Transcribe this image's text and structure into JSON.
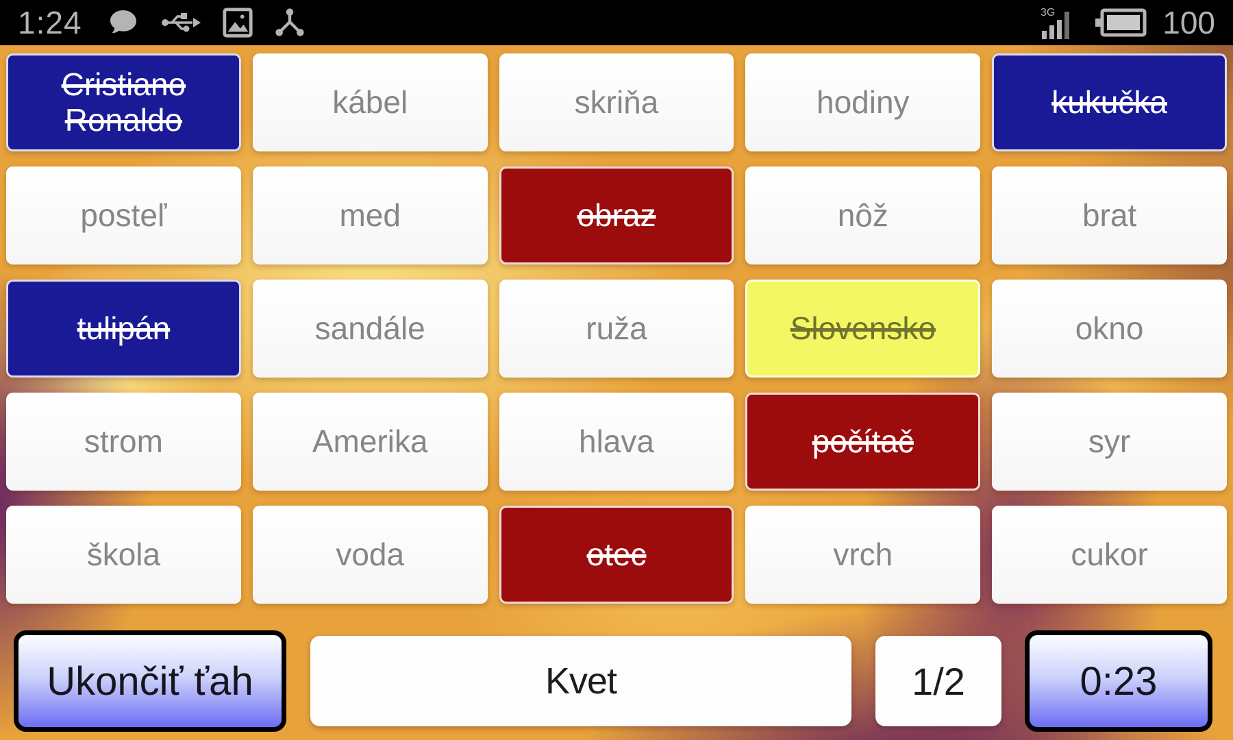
{
  "status_bar": {
    "time": "1:24",
    "network_label": "3G",
    "battery_text": "100",
    "left_icons": [
      "chat-icon",
      "usb-icon",
      "gallery-icon",
      "hub-icon"
    ],
    "right_icons": [
      "signal-icon",
      "battery-icon"
    ]
  },
  "board": {
    "rows": 5,
    "cols": 5,
    "cards": [
      {
        "word": "Cristiano Ronaldo",
        "type": "blue",
        "struck": true
      },
      {
        "word": "kábel",
        "type": "white",
        "struck": false
      },
      {
        "word": "skriňa",
        "type": "white",
        "struck": false
      },
      {
        "word": "hodiny",
        "type": "white",
        "struck": false
      },
      {
        "word": "kukučka",
        "type": "blue",
        "struck": true
      },
      {
        "word": "posteľ",
        "type": "white",
        "struck": false
      },
      {
        "word": "med",
        "type": "white",
        "struck": false
      },
      {
        "word": "obraz",
        "type": "red",
        "struck": true
      },
      {
        "word": "nôž",
        "type": "white",
        "struck": false
      },
      {
        "word": "brat",
        "type": "white",
        "struck": false
      },
      {
        "word": "tulipán",
        "type": "blue",
        "struck": true
      },
      {
        "word": "sandále",
        "type": "white",
        "struck": false
      },
      {
        "word": "ruža",
        "type": "white",
        "struck": false
      },
      {
        "word": "Slovensko",
        "type": "yellow",
        "struck": true
      },
      {
        "word": "okno",
        "type": "white",
        "struck": false
      },
      {
        "word": "strom",
        "type": "white",
        "struck": false
      },
      {
        "word": "Amerika",
        "type": "white",
        "struck": false
      },
      {
        "word": "hlava",
        "type": "white",
        "struck": false
      },
      {
        "word": "počítač",
        "type": "red",
        "struck": true
      },
      {
        "word": "syr",
        "type": "white",
        "struck": false
      },
      {
        "word": "škola",
        "type": "white",
        "struck": false
      },
      {
        "word": "voda",
        "type": "white",
        "struck": false
      },
      {
        "word": "otec",
        "type": "red",
        "struck": true
      },
      {
        "word": "vrch",
        "type": "white",
        "struck": false
      },
      {
        "word": "cukor",
        "type": "white",
        "struck": false
      }
    ]
  },
  "controls": {
    "end_turn_label": "Ukončiť ťah",
    "clue_word": "Kvet",
    "clue_count": "1/2",
    "timer": "0:23"
  },
  "colors": {
    "card_blue": "#1b1a96",
    "card_red": "#9c0c0c",
    "card_yellow": "#f2f763",
    "background_orange": "#e8a23c",
    "background_purple": "#5d1a67",
    "button_gradient_bottom": "#6e6ef3"
  }
}
